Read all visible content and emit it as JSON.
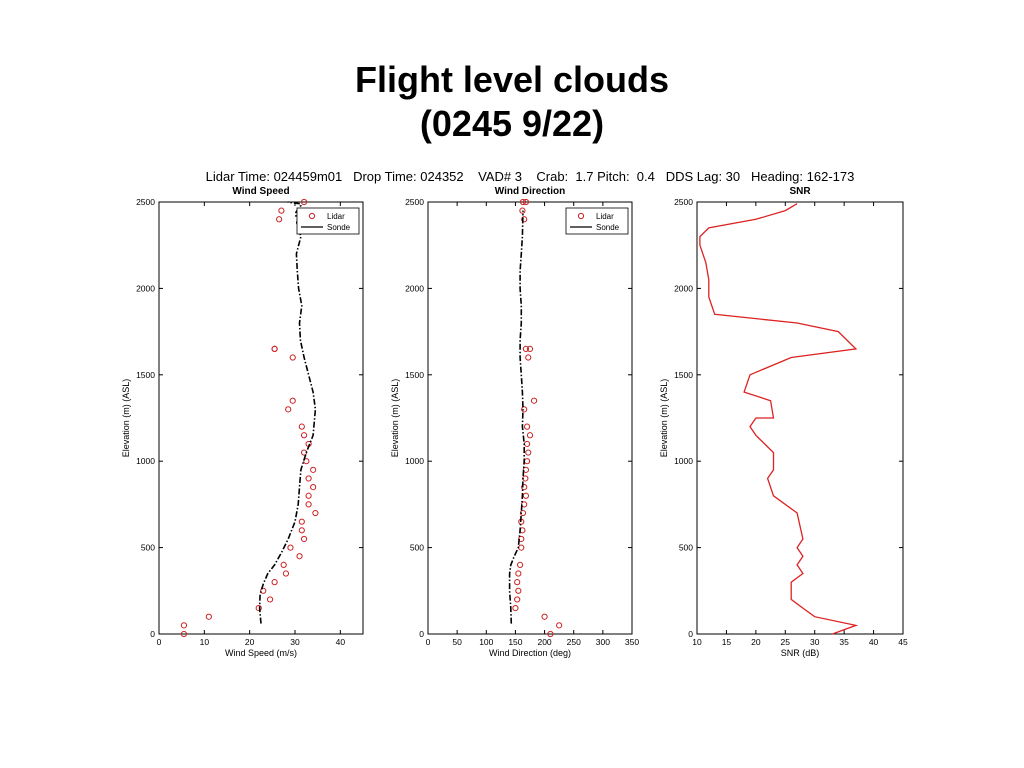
{
  "slide": {
    "title_line1": "Flight level clouds",
    "title_line2": "(0245 9/22)"
  },
  "header": {
    "text": "Lidar Time: 024459m01   Drop Time: 024352    VAD# 3    Crab:  1.7 Pitch:  0.4   DDS Lag: 30   Heading: 162-173"
  },
  "colors": {
    "lidar": "#cc2222",
    "sonde": "#000000",
    "snr": "#dd2222",
    "axis": "#000000"
  },
  "chart_data": [
    {
      "id": "wind-speed",
      "type": "scatter",
      "title": "Wind Speed",
      "xlabel": "Wind Speed (m/s)",
      "ylabel": "Elevation (m) (ASL)",
      "xlim": [
        0,
        45
      ],
      "ylim": [
        0,
        2500
      ],
      "xticks": [
        0,
        10,
        20,
        30,
        40
      ],
      "yticks": [
        0,
        500,
        1000,
        1500,
        2000,
        2500
      ],
      "legend": {
        "position": "top-right",
        "entries": [
          "Lidar",
          "Sonde"
        ]
      },
      "series": [
        {
          "name": "Lidar",
          "style": "markers",
          "x": [
            5.5,
            5.5,
            11,
            22,
            23,
            24.5,
            25.5,
            28,
            27.5,
            29,
            31,
            32,
            31.5,
            31.5,
            34.5,
            33,
            33,
            34,
            33,
            34,
            32.5,
            32,
            33,
            32,
            31.5,
            28.5,
            29.5,
            29.5,
            25.5,
            25.5,
            26.5,
            27,
            32
          ],
          "y": [
            0,
            50,
            100,
            150,
            250,
            200,
            300,
            350,
            400,
            500,
            450,
            550,
            600,
            650,
            700,
            750,
            800,
            850,
            900,
            950,
            1000,
            1050,
            1100,
            1150,
            1200,
            1300,
            1350,
            1600,
            1650,
            1650,
            2400,
            2450,
            2500
          ]
        },
        {
          "name": "Sonde",
          "style": "dashdot",
          "x": [
            22.5,
            22.2,
            22.3,
            23,
            24,
            25.5,
            27,
            28.5,
            30,
            30.7,
            31,
            31.3,
            32.5,
            34,
            34.5,
            34,
            33,
            32,
            31.2,
            31,
            31.5,
            30.8,
            30.5,
            30.3,
            31.3,
            30.7,
            30.4,
            30.6,
            30.2,
            30.2,
            30.7,
            31.3,
            31.1,
            29.6,
            28.4
          ],
          "y": [
            60,
            150,
            230,
            290,
            350,
            400,
            470,
            550,
            650,
            750,
            850,
            950,
            1050,
            1150,
            1300,
            1400,
            1500,
            1600,
            1700,
            1800,
            1900,
            2000,
            2100,
            2200,
            2300,
            2350,
            2380,
            2400,
            2420,
            2440,
            2460,
            2480,
            2490,
            2495,
            2500
          ]
        }
      ]
    },
    {
      "id": "wind-direction",
      "type": "scatter",
      "title": "Wind Direction",
      "xlabel": "Wind Direction (deg)",
      "ylabel": "Elevation (m) (ASL)",
      "xlim": [
        0,
        350
      ],
      "ylim": [
        0,
        2500
      ],
      "xticks": [
        0,
        50,
        100,
        150,
        200,
        250,
        300,
        350
      ],
      "yticks": [
        0,
        500,
        1000,
        1500,
        2000,
        2500
      ],
      "legend": {
        "position": "top-right",
        "entries": [
          "Lidar",
          "Sonde"
        ]
      },
      "series": [
        {
          "name": "Lidar",
          "style": "markers",
          "x": [
            210,
            225,
            200,
            150,
            153,
            155,
            153,
            155,
            158,
            160,
            160,
            162,
            160,
            163,
            165,
            168,
            165,
            167,
            168,
            170,
            172,
            170,
            175,
            170,
            165,
            182,
            172,
            175,
            168,
            165,
            162,
            163,
            168
          ],
          "y": [
            0,
            50,
            100,
            150,
            200,
            250,
            300,
            350,
            400,
            500,
            550,
            600,
            650,
            700,
            750,
            800,
            850,
            900,
            950,
            1000,
            1050,
            1100,
            1150,
            1200,
            1300,
            1350,
            1600,
            1650,
            1650,
            2400,
            2450,
            2500,
            2500
          ]
        },
        {
          "name": "Sonde",
          "style": "dashdot",
          "x": [
            143,
            142,
            140,
            140,
            142,
            148,
            155,
            158,
            160,
            162,
            163,
            165,
            165,
            162,
            163,
            162,
            160,
            158,
            158,
            160,
            160,
            158,
            158,
            160,
            162,
            163
          ],
          "y": [
            60,
            150,
            250,
            350,
            400,
            450,
            500,
            600,
            700,
            800,
            900,
            1000,
            1100,
            1200,
            1300,
            1400,
            1500,
            1600,
            1700,
            1800,
            1900,
            2000,
            2100,
            2200,
            2300,
            2450
          ]
        }
      ]
    },
    {
      "id": "snr",
      "type": "line",
      "title": "SNR",
      "xlabel": "SNR (dB)",
      "ylabel": "Elevation (m) (ASL)",
      "xlim": [
        10,
        45
      ],
      "ylim": [
        0,
        2500
      ],
      "xticks": [
        10,
        15,
        20,
        25,
        30,
        35,
        40,
        45
      ],
      "yticks": [
        0,
        500,
        1000,
        1500,
        2000,
        2500
      ],
      "series": [
        {
          "name": "SNR",
          "style": "line",
          "x": [
            33,
            37,
            30,
            28,
            26,
            26,
            28,
            27,
            28,
            27,
            28,
            27,
            23,
            22,
            23,
            23,
            20,
            19,
            20,
            23,
            22.5,
            18,
            19,
            26,
            37,
            34,
            27,
            13,
            12,
            12,
            11.5,
            10.5,
            10.5,
            12,
            20,
            25,
            27
          ],
          "y": [
            0,
            50,
            100,
            150,
            200,
            300,
            350,
            400,
            450,
            500,
            550,
            700,
            800,
            900,
            950,
            1050,
            1150,
            1200,
            1250,
            1250,
            1350,
            1400,
            1500,
            1600,
            1650,
            1750,
            1800,
            1850,
            1950,
            2050,
            2150,
            2250,
            2300,
            2350,
            2400,
            2450,
            2490
          ]
        }
      ]
    }
  ]
}
